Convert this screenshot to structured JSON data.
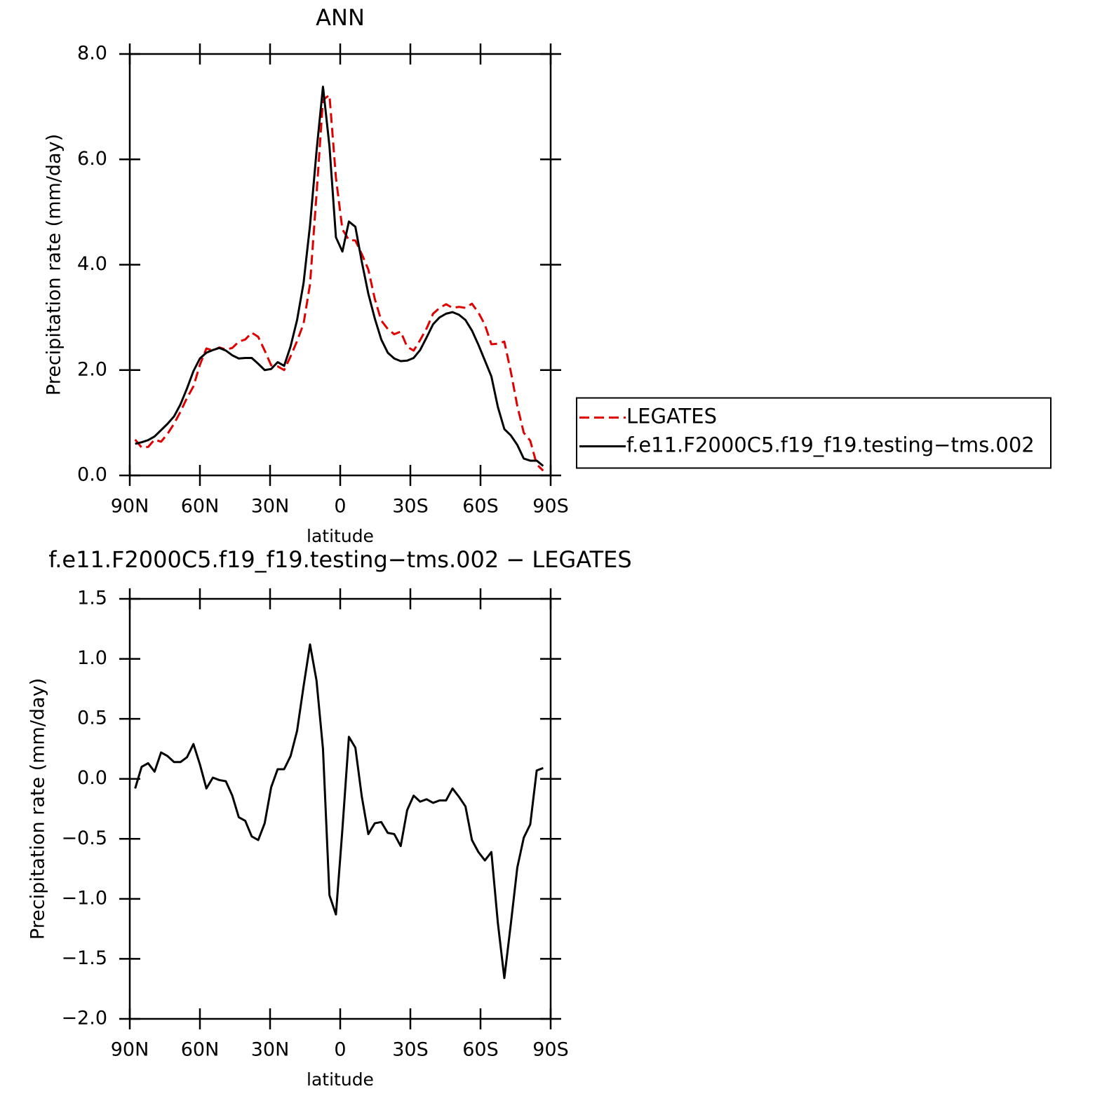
{
  "chart_data": [
    {
      "type": "line",
      "title": "ANN",
      "xlabel": "latitude",
      "ylabel": "Precipitation rate (mm/day)",
      "x": [
        87.7,
        84.93,
        82.16,
        79.39,
        76.62,
        73.85,
        71.08,
        68.31,
        65.54,
        62.77,
        60.0,
        57.23,
        54.46,
        51.69,
        48.92,
        46.15,
        43.38,
        40.61,
        37.84,
        35.07,
        32.3,
        29.53,
        26.76,
        23.99,
        21.22,
        18.45,
        15.68,
        12.91,
        10.14,
        7.37,
        4.6,
        1.83,
        -0.94,
        -3.71,
        -6.48,
        -9.25,
        -12.02,
        -14.79,
        -17.56,
        -20.33,
        -23.1,
        -25.87,
        -28.64,
        -31.41,
        -34.18,
        -36.95,
        -39.72,
        -42.49,
        -45.26,
        -48.03,
        -50.8,
        -53.57,
        -56.34,
        -59.11,
        -61.88,
        -64.65,
        -67.42,
        -70.19,
        -72.96,
        -75.73,
        -78.5,
        -81.27,
        -84.04,
        -86.81
      ],
      "series": [
        {
          "name": "LEGATES",
          "color": "#e00000",
          "linestyle": "dashed",
          "values": [
            0.68,
            0.53,
            0.54,
            0.68,
            0.64,
            0.79,
            0.98,
            1.21,
            1.47,
            1.69,
            2.1,
            2.41,
            2.37,
            2.43,
            2.39,
            2.42,
            2.54,
            2.58,
            2.71,
            2.63,
            2.37,
            2.09,
            2.07,
            2.0,
            2.26,
            2.55,
            2.88,
            3.63,
            5.33,
            7.13,
            7.22,
            5.65,
            4.67,
            4.47,
            4.46,
            4.2,
            3.91,
            3.35,
            2.94,
            2.78,
            2.68,
            2.73,
            2.44,
            2.37,
            2.57,
            2.79,
            3.07,
            3.18,
            3.25,
            3.18,
            3.2,
            3.18,
            3.26,
            3.09,
            2.86,
            2.49,
            2.5,
            2.54,
            1.97,
            1.32,
            0.81,
            0.66,
            0.21,
            0.09
          ]
        },
        {
          "name": "f.e11.F2000C5.f19_f19.testing−tms.002",
          "color": "#000000",
          "linestyle": "solid",
          "values": [
            0.6,
            0.63,
            0.67,
            0.74,
            0.86,
            0.98,
            1.12,
            1.35,
            1.65,
            1.98,
            2.22,
            2.33,
            2.38,
            2.42,
            2.37,
            2.28,
            2.22,
            2.23,
            2.23,
            2.12,
            2.0,
            2.02,
            2.15,
            2.08,
            2.45,
            2.95,
            3.65,
            4.75,
            6.15,
            7.38,
            6.25,
            4.52,
            4.25,
            4.82,
            4.72,
            4.05,
            3.45,
            2.98,
            2.58,
            2.33,
            2.22,
            2.17,
            2.18,
            2.23,
            2.38,
            2.62,
            2.87,
            3.0,
            3.07,
            3.1,
            3.05,
            2.95,
            2.75,
            2.48,
            2.18,
            1.88,
            1.3,
            0.88,
            0.76,
            0.58,
            0.32,
            0.28,
            0.28,
            0.18
          ]
        }
      ],
      "xlim": [
        90,
        -90
      ],
      "xticks": [
        {
          "value": 90,
          "label": "90N"
        },
        {
          "value": 60,
          "label": "60N"
        },
        {
          "value": 30,
          "label": "30N"
        },
        0,
        {
          "value": -30,
          "label": "30S"
        },
        {
          "value": -60,
          "label": "60S"
        },
        {
          "value": -90,
          "label": "90S"
        }
      ],
      "ylim": [
        0,
        8
      ],
      "yticks": [
        {
          "value": 0,
          "label": "0.0"
        },
        {
          "value": 2,
          "label": "2.0"
        },
        {
          "value": 4,
          "label": "4.0"
        },
        {
          "value": 6,
          "label": "6.0"
        },
        {
          "value": 8,
          "label": "8.0"
        }
      ],
      "legend": "right"
    },
    {
      "type": "line",
      "title": "f.e11.F2000C5.f19_f19.testing−tms.002 − LEGATES",
      "xlabel": "latitude",
      "ylabel": "Precipitation rate (mm/day)",
      "x": [
        87.7,
        84.93,
        82.16,
        79.39,
        76.62,
        73.85,
        71.08,
        68.31,
        65.54,
        62.77,
        60.0,
        57.23,
        54.46,
        51.69,
        48.92,
        46.15,
        43.38,
        40.61,
        37.84,
        35.07,
        32.3,
        29.53,
        26.76,
        23.99,
        21.22,
        18.45,
        15.68,
        12.91,
        10.14,
        7.37,
        4.6,
        1.83,
        -0.94,
        -3.71,
        -6.48,
        -9.25,
        -12.02,
        -14.79,
        -17.56,
        -20.33,
        -23.1,
        -25.87,
        -28.64,
        -31.41,
        -34.18,
        -36.95,
        -39.72,
        -42.49,
        -45.26,
        -48.03,
        -50.8,
        -53.57,
        -56.34,
        -59.11,
        -61.88,
        -64.65,
        -67.42,
        -70.19,
        -72.96,
        -75.73,
        -78.5,
        -81.27,
        -84.04,
        -86.81
      ],
      "series": [
        {
          "color": "#000000",
          "linestyle": "solid",
          "values": [
            -0.08,
            0.1,
            0.13,
            0.06,
            0.22,
            0.19,
            0.14,
            0.14,
            0.18,
            0.29,
            0.12,
            -0.08,
            0.01,
            -0.01,
            -0.02,
            -0.14,
            -0.32,
            -0.35,
            -0.48,
            -0.51,
            -0.37,
            -0.07,
            0.08,
            0.08,
            0.19,
            0.4,
            0.77,
            1.12,
            0.82,
            0.25,
            -0.97,
            -1.13,
            -0.42,
            0.35,
            0.26,
            -0.15,
            -0.46,
            -0.37,
            -0.36,
            -0.45,
            -0.46,
            -0.56,
            -0.26,
            -0.14,
            -0.19,
            -0.17,
            -0.2,
            -0.18,
            -0.18,
            -0.08,
            -0.15,
            -0.23,
            -0.51,
            -0.61,
            -0.68,
            -0.61,
            -1.2,
            -1.66,
            -1.21,
            -0.74,
            -0.49,
            -0.38,
            0.07,
            0.09
          ]
        }
      ],
      "xlim": [
        90,
        -90
      ],
      "xticks": [
        {
          "value": 90,
          "label": "90N"
        },
        {
          "value": 60,
          "label": "60N"
        },
        {
          "value": 30,
          "label": "30N"
        },
        0,
        {
          "value": -30,
          "label": "30S"
        },
        {
          "value": -60,
          "label": "60S"
        },
        {
          "value": -90,
          "label": "90S"
        }
      ],
      "ylim": [
        -2,
        1.5
      ],
      "yticks": [
        {
          "value": -2,
          "label": "−2.0"
        },
        {
          "value": -1.5,
          "label": "−1.5"
        },
        {
          "value": -1,
          "label": "−1.0"
        },
        {
          "value": -0.5,
          "label": "−0.5"
        },
        {
          "value": 0,
          "label": "0.0"
        },
        {
          "value": 0.5,
          "label": "0.5"
        },
        {
          "value": 1,
          "label": "1.0"
        },
        {
          "value": 1.5,
          "label": "1.5"
        }
      ]
    }
  ]
}
